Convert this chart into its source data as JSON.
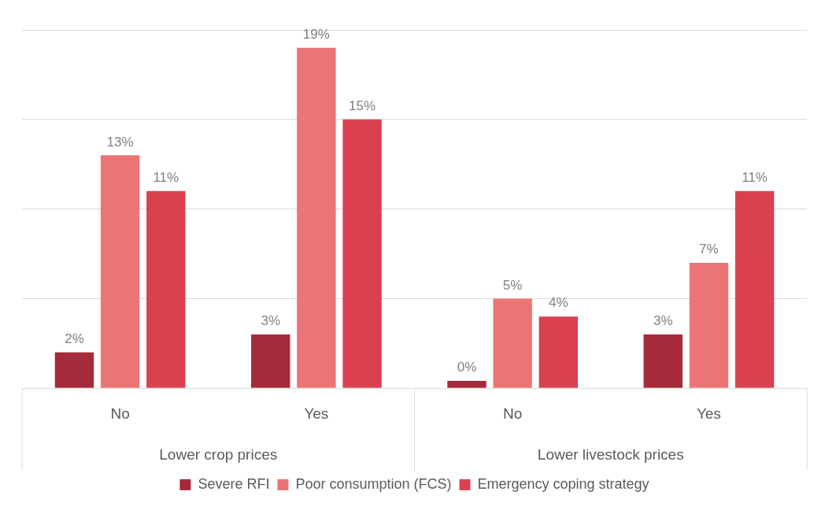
{
  "chart_data": {
    "type": "bar",
    "categories": [
      "No",
      "Yes",
      "No",
      "Yes"
    ],
    "annotations": [
      "Lower crop prices",
      "Lower livestock prices"
    ],
    "ylim": [
      0,
      20
    ],
    "yticks": [
      {
        "value": 0,
        "label": null
      },
      {
        "value": 5,
        "label": null
      },
      {
        "value": 10,
        "label": null
      },
      {
        "value": 15,
        "label": null
      },
      {
        "value": 20,
        "label": null
      }
    ],
    "grid": "y",
    "legend": "bottom",
    "series": [
      {
        "name": "Severe RFI",
        "color": "#a52a3a",
        "values": [
          2,
          3,
          0.4,
          3
        ],
        "value_labels": [
          "2%",
          "3%",
          "0%",
          "3%"
        ]
      },
      {
        "name": "Poor consumption (FCS)",
        "color": "#eb7575",
        "values": [
          13,
          19,
          5,
          7
        ],
        "value_labels": [
          "13%",
          "19%",
          "5%",
          "7%"
        ]
      },
      {
        "name": "Emergency coping strategy",
        "color": "#d9414f",
        "values": [
          11,
          15,
          4,
          11
        ],
        "value_labels": [
          "11%",
          "15%",
          "4%",
          "11%"
        ]
      }
    ]
  }
}
